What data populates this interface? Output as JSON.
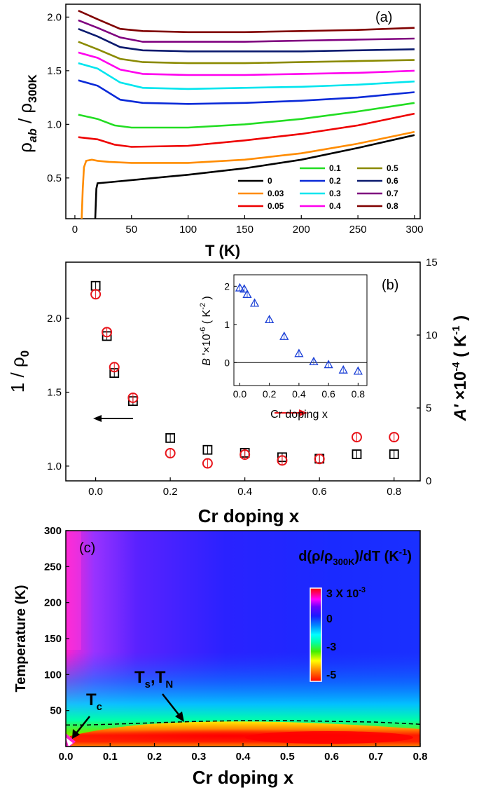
{
  "figure": {
    "panel_a_label": "(a)",
    "panel_b_label": "(b)",
    "panel_c_label": "(c)"
  },
  "chart_data": [
    {
      "type": "line",
      "panel": "(a)",
      "xlabel": "T (K)",
      "ylabel_main": "ρ",
      "ylabel_sub_ab": "ab",
      "ylabel_mid": " / ρ",
      "ylabel_sub_300": "300K",
      "xlim": [
        -8,
        305
      ],
      "ylim": [
        0.12,
        2.12
      ],
      "xticks": [
        0,
        50,
        100,
        150,
        200,
        250,
        300
      ],
      "yticks": [
        0.5,
        1.0,
        1.5,
        2.0
      ],
      "legend_position": "bottom-right",
      "series": [
        {
          "name": "0",
          "color": "#000000",
          "x": [
            18,
            19,
            20,
            30,
            60,
            100,
            150,
            200,
            250,
            300
          ],
          "y": [
            0.12,
            0.4,
            0.45,
            0.46,
            0.49,
            0.53,
            0.59,
            0.67,
            0.78,
            0.9
          ]
        },
        {
          "name": "0.03",
          "color": "#ff8c00",
          "x": [
            6,
            7,
            8,
            10,
            15,
            20,
            30,
            50,
            100,
            150,
            200,
            250,
            300
          ],
          "y": [
            0.12,
            0.4,
            0.6,
            0.66,
            0.67,
            0.66,
            0.65,
            0.64,
            0.64,
            0.67,
            0.73,
            0.82,
            0.93
          ]
        },
        {
          "name": "0.05",
          "color": "#ee0000",
          "x": [
            3,
            20,
            35,
            50,
            100,
            150,
            200,
            250,
            300
          ],
          "y": [
            0.88,
            0.86,
            0.81,
            0.79,
            0.8,
            0.85,
            0.91,
            0.99,
            1.1
          ]
        },
        {
          "name": "0.1",
          "color": "#22dd22",
          "x": [
            3,
            20,
            35,
            50,
            100,
            150,
            200,
            250,
            300
          ],
          "y": [
            1.09,
            1.05,
            0.99,
            0.97,
            0.97,
            1.0,
            1.05,
            1.12,
            1.2
          ]
        },
        {
          "name": "0.2",
          "color": "#0a2ad8",
          "x": [
            3,
            20,
            40,
            60,
            100,
            150,
            200,
            250,
            300
          ],
          "y": [
            1.41,
            1.36,
            1.23,
            1.2,
            1.19,
            1.2,
            1.22,
            1.25,
            1.3
          ]
        },
        {
          "name": "0.3",
          "color": "#00e5ee",
          "x": [
            3,
            20,
            40,
            60,
            100,
            150,
            200,
            250,
            300
          ],
          "y": [
            1.57,
            1.52,
            1.39,
            1.34,
            1.33,
            1.34,
            1.35,
            1.37,
            1.4
          ]
        },
        {
          "name": "0.4",
          "color": "#ff00ee",
          "x": [
            3,
            20,
            40,
            60,
            100,
            150,
            200,
            250,
            300
          ],
          "y": [
            1.67,
            1.62,
            1.51,
            1.47,
            1.46,
            1.46,
            1.47,
            1.48,
            1.5
          ]
        },
        {
          "name": "0.5",
          "color": "#8a8a00",
          "x": [
            3,
            20,
            40,
            60,
            100,
            150,
            200,
            250,
            300
          ],
          "y": [
            1.77,
            1.7,
            1.61,
            1.58,
            1.57,
            1.57,
            1.58,
            1.59,
            1.6
          ]
        },
        {
          "name": "0.6",
          "color": "#0a1a6e",
          "x": [
            3,
            20,
            40,
            60,
            100,
            150,
            200,
            250,
            300
          ],
          "y": [
            1.89,
            1.82,
            1.72,
            1.69,
            1.68,
            1.68,
            1.68,
            1.69,
            1.7
          ]
        },
        {
          "name": "0.7",
          "color": "#7f007f",
          "x": [
            3,
            20,
            40,
            60,
            100,
            150,
            200,
            250,
            300
          ],
          "y": [
            1.97,
            1.9,
            1.81,
            1.77,
            1.77,
            1.77,
            1.78,
            1.79,
            1.8
          ]
        },
        {
          "name": "0.8",
          "color": "#800000",
          "x": [
            3,
            20,
            40,
            60,
            100,
            150,
            200,
            250,
            300
          ],
          "y": [
            2.06,
            1.98,
            1.89,
            1.87,
            1.86,
            1.86,
            1.87,
            1.88,
            1.9
          ]
        }
      ]
    },
    {
      "type": "scatter",
      "panel": "(b)",
      "xlabel": "Cr doping x",
      "ylabel_left": "1 / ρ",
      "ylabel_left_sub": "0",
      "ylabel_right_A": "A'",
      "ylabel_right_rest": " ×10",
      "ylabel_right_exp": "-4",
      "ylabel_right_unit": " ( K",
      "ylabel_right_unit_exp": "-1",
      "ylabel_right_close": " )",
      "xlim": [
        -0.08,
        0.87
      ],
      "ylim_left": [
        0.9,
        2.38
      ],
      "ylim_right": [
        0,
        15
      ],
      "xticks": [
        0.0,
        0.2,
        0.4,
        0.6,
        0.8
      ],
      "yticks_left": [
        1.0,
        1.5,
        2.0
      ],
      "yticks_right": [
        0,
        5,
        10,
        15
      ],
      "series": [
        {
          "name": "1/ρ0",
          "axis": "left",
          "marker": "square",
          "color": "#000000",
          "x": [
            0.0,
            0.03,
            0.05,
            0.1,
            0.2,
            0.3,
            0.4,
            0.5,
            0.6,
            0.7,
            0.8
          ],
          "y": [
            2.22,
            1.88,
            1.63,
            1.44,
            1.19,
            1.11,
            1.09,
            1.06,
            1.05,
            1.08,
            1.08
          ]
        },
        {
          "name": "A'",
          "axis": "right",
          "marker": "circle",
          "color": "#e8141a",
          "x": [
            0.0,
            0.03,
            0.05,
            0.1,
            0.2,
            0.3,
            0.4,
            0.5,
            0.6,
            0.7,
            0.8
          ],
          "y": [
            12.8,
            10.2,
            7.8,
            5.7,
            1.9,
            1.2,
            1.8,
            1.4,
            1.5,
            3.0,
            3.0
          ]
        }
      ],
      "inset": {
        "type": "scatter",
        "xlabel": "Cr doping x",
        "ylabel_B": "B",
        "ylabel_rest": " '×10",
        "ylabel_exp": "-6",
        "ylabel_unit": " ( K",
        "ylabel_unit_exp": "-2",
        "ylabel_close": " )",
        "xlim": [
          -0.04,
          0.86
        ],
        "ylim": [
          -0.6,
          2.3
        ],
        "xticks": [
          0.0,
          0.2,
          0.4,
          0.6,
          0.8
        ],
        "xtick_labels": [
          "0.0",
          "0.2",
          "0.4",
          "0.6",
          "0.8"
        ],
        "yticks": [
          0,
          1,
          2
        ],
        "zero_line": true,
        "marker": "triangle",
        "color": "#1a3fd6",
        "x": [
          0.0,
          0.03,
          0.05,
          0.1,
          0.2,
          0.3,
          0.4,
          0.5,
          0.6,
          0.7,
          0.8
        ],
        "y": [
          1.95,
          1.92,
          1.78,
          1.55,
          1.12,
          0.68,
          0.23,
          0.02,
          -0.06,
          -0.2,
          -0.23
        ]
      }
    },
    {
      "type": "heatmap",
      "panel": "(c)",
      "xlabel": "Cr doping x",
      "ylabel": "Temperature (K)",
      "xlim": [
        0.0,
        0.8
      ],
      "ylim": [
        0,
        300
      ],
      "xticks": [
        0.0,
        0.1,
        0.2,
        0.3,
        0.4,
        0.5,
        0.6,
        0.7,
        0.8
      ],
      "yticks": [
        50,
        100,
        150,
        200,
        250,
        300
      ],
      "title_d": "d(ρ/ρ",
      "title_sub": "300K",
      "title_rest": ")/dT (K",
      "title_exp": "-1",
      "title_close": ")",
      "colorbar_ticks": [
        "3 X 10",
        "0",
        "-3",
        "-5"
      ],
      "colorbar_top_exp": "-3",
      "annotation_tc": "T",
      "annotation_tc_sub": "c",
      "annotation_ts": "T",
      "annotation_ts_sub": "s",
      "annotation_tn": "T",
      "annotation_tn_sub": "N",
      "phase_boundary": {
        "x": [
          0.0,
          0.05,
          0.1,
          0.2,
          0.3,
          0.4,
          0.5,
          0.6,
          0.7,
          0.8
        ],
        "y": [
          30,
          30,
          31,
          33,
          35,
          36,
          36,
          35,
          34,
          31
        ]
      },
      "colormap": [
        "#ff0000",
        "#ff8800",
        "#ffff00",
        "#44ee00",
        "#00ffaa",
        "#00ffff",
        "#0088ff",
        "#1a1aff",
        "#6a00ff",
        "#ff00ff",
        "#ff0066",
        "#ff0000"
      ]
    }
  ]
}
